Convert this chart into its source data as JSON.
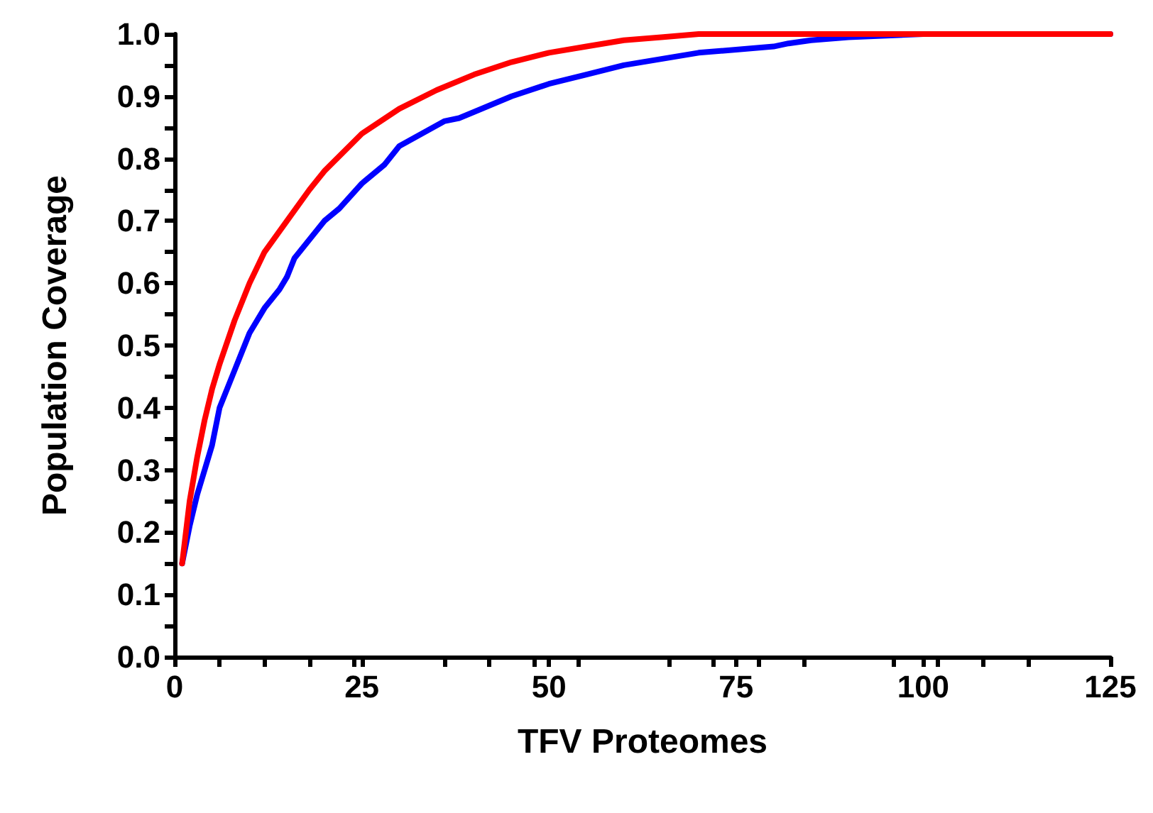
{
  "chart_data": {
    "type": "line",
    "xlabel": "TFV Proteomes",
    "ylabel": "Population Coverage",
    "xlim": [
      0,
      125
    ],
    "xticks": [
      0,
      25,
      50,
      75,
      100,
      125
    ],
    "ylim": [
      0,
      1
    ],
    "yticks": [
      {
        "value": 0,
        "label": "0.0"
      },
      0.1,
      0.2,
      0.3,
      0.4,
      0.5,
      0.6,
      0.7,
      0.8,
      0.9,
      {
        "value": 1,
        "label": "1.0"
      }
    ],
    "marker": "none",
    "line_style": "solid",
    "series": [
      {
        "color": "#0000ff",
        "x": [
          1,
          2,
          3,
          4,
          5,
          6,
          8,
          10,
          12,
          14,
          15,
          16,
          18,
          20,
          22,
          25,
          28,
          30,
          33,
          36,
          38,
          40,
          45,
          50,
          55,
          60,
          65,
          70,
          75,
          80,
          82,
          85,
          90,
          100,
          125
        ],
        "values": [
          0.15,
          0.21,
          0.26,
          0.3,
          0.34,
          0.4,
          0.46,
          0.52,
          0.56,
          0.59,
          0.61,
          0.64,
          0.67,
          0.7,
          0.72,
          0.76,
          0.79,
          0.82,
          0.84,
          0.86,
          0.865,
          0.875,
          0.9,
          0.92,
          0.935,
          0.95,
          0.96,
          0.97,
          0.975,
          0.98,
          0.985,
          0.99,
          0.995,
          1,
          1
        ]
      },
      {
        "color": "#ff0000",
        "x": [
          1,
          2,
          3,
          4,
          5,
          6,
          8,
          10,
          12,
          15,
          18,
          20,
          25,
          30,
          35,
          40,
          45,
          50,
          55,
          60,
          65,
          70,
          80,
          100,
          125
        ],
        "values": [
          0.15,
          0.25,
          0.32,
          0.38,
          0.43,
          0.47,
          0.54,
          0.6,
          0.65,
          0.7,
          0.75,
          0.78,
          0.84,
          0.88,
          0.91,
          0.935,
          0.955,
          0.97,
          0.98,
          0.99,
          0.995,
          1,
          1,
          1,
          1
        ]
      }
    ]
  }
}
